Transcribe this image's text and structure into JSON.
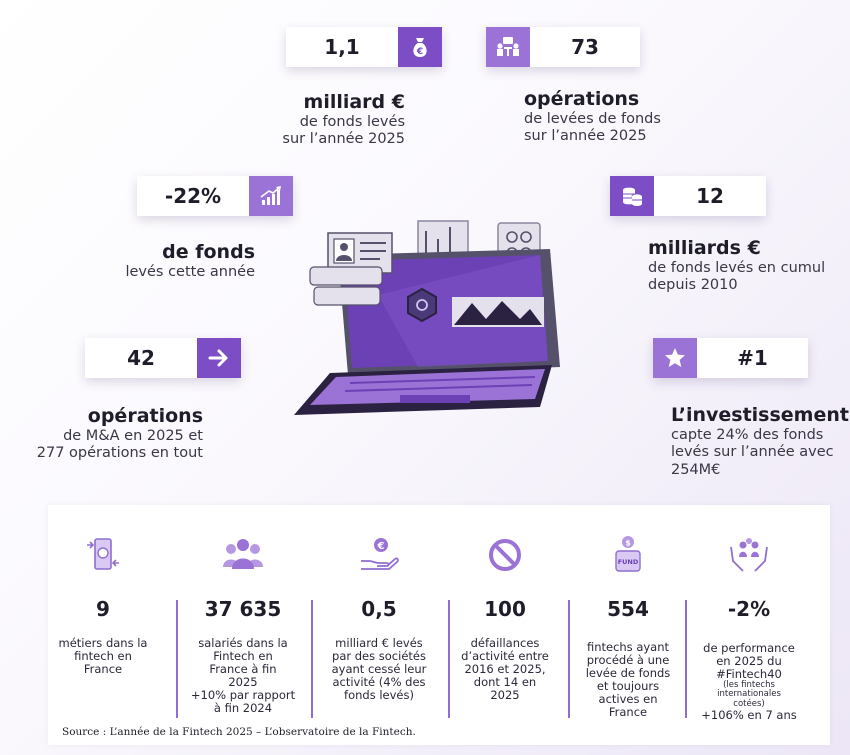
{
  "top_stats": [
    {
      "value": "1,1",
      "icon": "money-bag-icon",
      "title": "milliard €",
      "lines": [
        "de fonds levés",
        "sur l’année 2025"
      ]
    },
    {
      "value": "73",
      "icon": "meeting-icon",
      "title": "opérations",
      "lines": [
        "de levées de fonds",
        "sur l’année 2025"
      ]
    },
    {
      "value": "-22%",
      "icon": "growth-chart-icon",
      "title": "de fonds",
      "lines": [
        "levés cette année"
      ]
    },
    {
      "value": "12",
      "icon": "coins-stack-icon",
      "title": "milliards €",
      "lines": [
        "de fonds levés en cumul",
        "depuis 2010"
      ]
    },
    {
      "value": "42",
      "icon": "arrow-right-icon",
      "title": "opérations",
      "lines": [
        "de M&A en 2025 et",
        "277 opérations en tout"
      ]
    },
    {
      "value": "#1",
      "icon": "star-icon",
      "title": "L’investissement",
      "lines": [
        "capte 24% des fonds",
        "levés sur l’année avec",
        "254M€"
      ]
    }
  ],
  "bottom_stats": [
    {
      "icon": "mobile-payment-icon",
      "value": "9",
      "lines": [
        "métiers dans la",
        "fintech en",
        "France"
      ]
    },
    {
      "icon": "people-group-icon",
      "value": "37 635",
      "lines": [
        "salariés dans la",
        "Fintech en",
        "France à fin",
        "2025",
        "+10% par rapport",
        "à fin 2024"
      ]
    },
    {
      "icon": "hand-euro-icon",
      "value": "0,5",
      "lines": [
        "milliard € levés",
        "par des sociétés",
        "ayant cessé leur",
        "activité (4% des",
        "fonds levés)"
      ]
    },
    {
      "icon": "prohibited-icon",
      "value": "100",
      "lines": [
        "défaillances",
        "d’activité entre",
        "2016 et 2025,",
        "dont 14 en 2025"
      ]
    },
    {
      "icon": "fund-jar-icon",
      "value": "554",
      "lines": [
        "fintechs ayant",
        "procédé à une",
        "levée de fonds",
        "et toujours",
        "actives en",
        "France"
      ]
    },
    {
      "icon": "hands-people-icon",
      "value": "-2%",
      "lines": [
        "de performance",
        "en 2025 du",
        "#Fintech40"
      ],
      "tiny_lines": [
        "(les fintechs",
        "internationales",
        "cotées)"
      ],
      "after_lines": [
        "+106% en 7 ans"
      ]
    }
  ],
  "fund_label": "FUND",
  "source": "Source : L’année de la Fintech 2025 – L’observatoire de la Fintech.",
  "colors": {
    "accent": "#7c4dc4",
    "accent_light": "#9b72d6",
    "laptop": "#6b41b5"
  }
}
